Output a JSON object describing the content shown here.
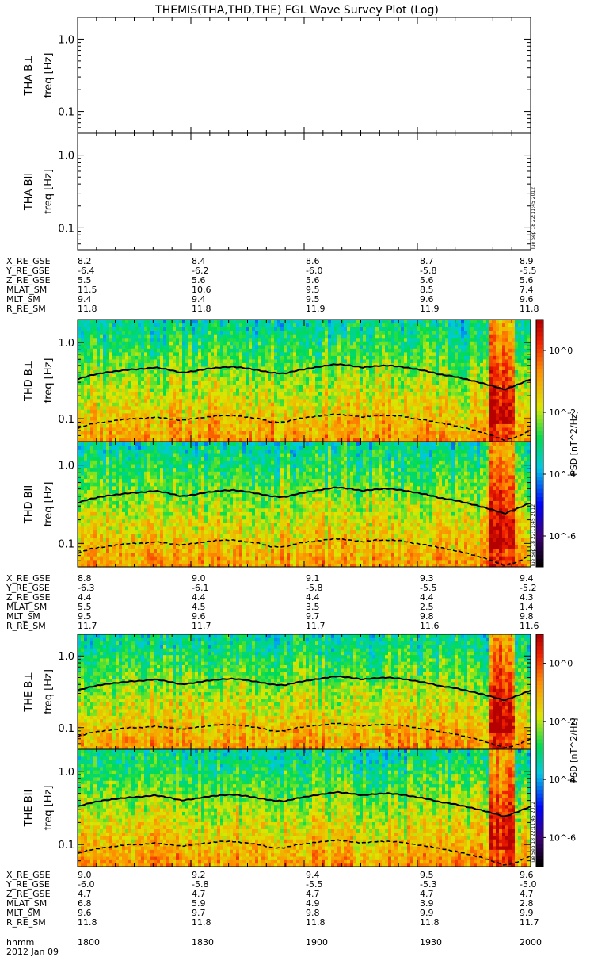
{
  "chart_data": {
    "type": "heatmap",
    "title": "THEMIS(THA,THD,THE) FGL Wave Survey Plot (Log)",
    "date": "2012 Jan 09",
    "timestamp": "Tue Sep 18 22:11:45 2012",
    "x_tick_row_label": "hhmm",
    "x_ticks": [
      "1800",
      "1830",
      "1900",
      "1930",
      "2000"
    ],
    "y_scale": "log",
    "ylim": [
      0.05,
      2.0
    ],
    "y_ticks": [
      "1.0",
      "0.1"
    ],
    "colorbar": {
      "label": "PSD",
      "units": "nT^2/Hz",
      "tick_labels": [
        "10^0",
        "10^-2",
        "10^-4",
        "10^-6"
      ],
      "range_exp": [
        -7,
        1
      ]
    },
    "panels": [
      {
        "probe": "THA",
        "component": "B⊥",
        "ylabel": "freq [Hz]",
        "has_data": false
      },
      {
        "probe": "THA",
        "component": "BII",
        "ylabel": "freq [Hz]",
        "has_data": false
      },
      {
        "probe": "THD",
        "component": "B⊥",
        "ylabel": "freq [Hz]",
        "has_data": true,
        "seed": 11
      },
      {
        "probe": "THD",
        "component": "BII",
        "ylabel": "freq [Hz]",
        "has_data": true,
        "seed": 23
      },
      {
        "probe": "THE",
        "component": "B⊥",
        "ylabel": "freq [Hz]",
        "has_data": true,
        "seed": 37
      },
      {
        "probe": "THE",
        "component": "BII",
        "ylabel": "freq [Hz]",
        "has_data": true,
        "seed": 51
      }
    ],
    "fce_half_line_hz": [
      0.33,
      0.37,
      0.4,
      0.42,
      0.44,
      0.45,
      0.47,
      0.44,
      0.4,
      0.42,
      0.45,
      0.47,
      0.48,
      0.46,
      0.43,
      0.4,
      0.39,
      0.43,
      0.46,
      0.49,
      0.52,
      0.5,
      0.47,
      0.49,
      0.5,
      0.48,
      0.45,
      0.42,
      0.38,
      0.36,
      0.33,
      0.3,
      0.27,
      0.24,
      0.28,
      0.33
    ],
    "fce_tenth_line_hz": [
      0.075,
      0.085,
      0.09,
      0.095,
      0.1,
      0.1,
      0.105,
      0.1,
      0.095,
      0.1,
      0.105,
      0.11,
      0.11,
      0.105,
      0.1,
      0.09,
      0.09,
      0.1,
      0.105,
      0.11,
      0.115,
      0.11,
      0.105,
      0.11,
      0.11,
      0.108,
      0.1,
      0.095,
      0.088,
      0.082,
      0.075,
      0.068,
      0.06,
      0.052,
      0.058,
      0.07
    ]
  },
  "ephemeris": [
    {
      "rows": [
        {
          "label": "X_RE_GSE",
          "values": [
            "8.2",
            "8.4",
            "8.6",
            "8.7",
            "8.9"
          ]
        },
        {
          "label": "Y_RE_GSE",
          "values": [
            "-6.4",
            "-6.2",
            "-6.0",
            "-5.8",
            "-5.5"
          ]
        },
        {
          "label": "Z_RE_GSE",
          "values": [
            "5.5",
            "5.6",
            "5.6",
            "5.6",
            "5.6"
          ]
        },
        {
          "label": "MLAT_SM",
          "values": [
            "11.5",
            "10.6",
            "9.5",
            "8.5",
            "7.4"
          ]
        },
        {
          "label": "MLT_SM",
          "values": [
            "9.4",
            "9.4",
            "9.5",
            "9.6",
            "9.6"
          ]
        },
        {
          "label": "R_RE_SM",
          "values": [
            "11.8",
            "11.8",
            "11.9",
            "11.9",
            "11.8"
          ]
        }
      ]
    },
    {
      "rows": [
        {
          "label": "X_RE_GSE",
          "values": [
            "8.8",
            "9.0",
            "9.1",
            "9.3",
            "9.4"
          ]
        },
        {
          "label": "Y_RE_GSE",
          "values": [
            "-6.3",
            "-6.1",
            "-5.8",
            "-5.5",
            "-5.2"
          ]
        },
        {
          "label": "Z_RE_GSE",
          "values": [
            "4.4",
            "4.4",
            "4.4",
            "4.4",
            "4.3"
          ]
        },
        {
          "label": "MLAT_SM",
          "values": [
            "5.5",
            "4.5",
            "3.5",
            "2.5",
            "1.4"
          ]
        },
        {
          "label": "MLT_SM",
          "values": [
            "9.5",
            "9.6",
            "9.7",
            "9.8",
            "9.8"
          ]
        },
        {
          "label": "R_RE_SM",
          "values": [
            "11.7",
            "11.7",
            "11.7",
            "11.6",
            "11.6"
          ]
        }
      ]
    },
    {
      "rows": [
        {
          "label": "X_RE_GSE",
          "values": [
            "9.0",
            "9.2",
            "9.4",
            "9.5",
            "9.6"
          ]
        },
        {
          "label": "Y_RE_GSE",
          "values": [
            "-6.0",
            "-5.8",
            "-5.5",
            "-5.3",
            "-5.0"
          ]
        },
        {
          "label": "Z_RE_GSE",
          "values": [
            "4.7",
            "4.7",
            "4.7",
            "4.7",
            "4.7"
          ]
        },
        {
          "label": "MLAT_SM",
          "values": [
            "6.8",
            "5.9",
            "4.9",
            "3.9",
            "2.8"
          ]
        },
        {
          "label": "MLT_SM",
          "values": [
            "9.6",
            "9.7",
            "9.8",
            "9.9",
            "9.9"
          ]
        },
        {
          "label": "R_RE_SM",
          "values": [
            "11.8",
            "11.8",
            "11.8",
            "11.8",
            "11.7"
          ]
        }
      ]
    }
  ]
}
